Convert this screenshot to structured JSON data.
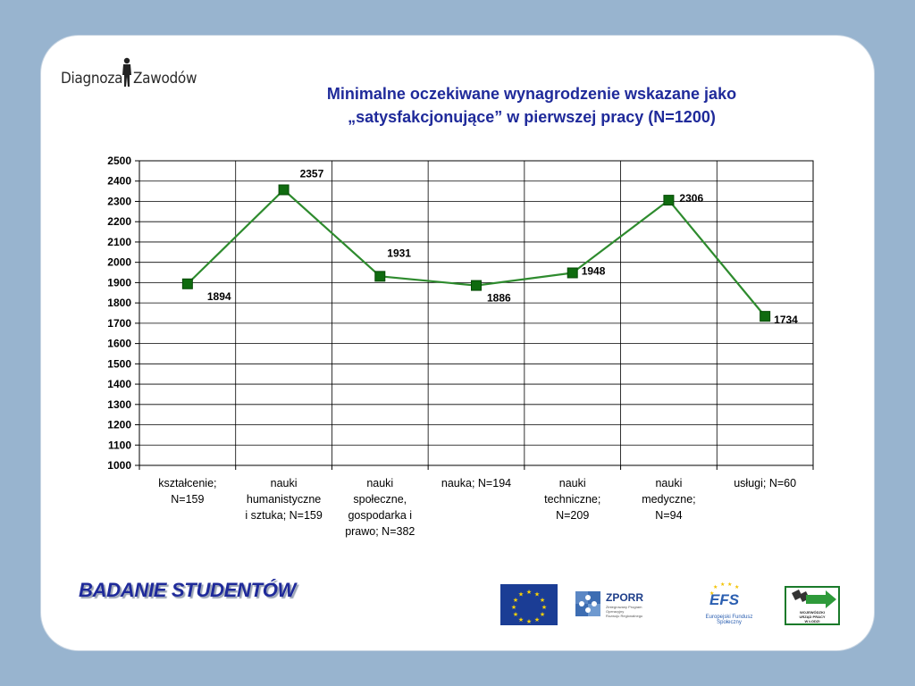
{
  "header": {
    "brand_left": "Diagnoza",
    "brand_right": "Zawodów",
    "title_line1": "Minimalne oczekiwane wynagrodzenie wskazane jako",
    "title_line2": "„satysfakcjonujące” w pierwszej pracy (N=1200)"
  },
  "footer": {
    "survey_label": "BADANIE STUDENTÓW",
    "zporr_label": "ZPORR",
    "zporr_sub": [
      "Zintegrowany Program",
      "Operacyjny",
      "Rozwoju Regionalnego"
    ],
    "efs_label": "EFS",
    "efs_sub": "Europejski Fundusz Społeczny",
    "wup_label": [
      "WOJEWÓDZKI",
      "URZĄD PRACY",
      "W ŁODZI"
    ]
  },
  "colors": {
    "background": "#98b4cf",
    "title": "#1f2a9a",
    "line": "#2e8b2e",
    "marker": "#0f6b0f"
  },
  "chart_data": {
    "type": "line",
    "title": "Minimalne oczekiwane wynagrodzenie wskazane jako „satysfakcjonujące” w pierwszej pracy (N=1200)",
    "xlabel": "",
    "ylabel": "",
    "ylim": [
      1000,
      2500
    ],
    "ytick_step": 100,
    "grid": true,
    "legend": "none",
    "categories": [
      [
        "kształcenie;",
        "N=159"
      ],
      [
        "nauki",
        "humanistyczne",
        "i sztuka; N=159"
      ],
      [
        "nauki",
        "społeczne,",
        "gospodarka i",
        "prawo; N=382"
      ],
      [
        "nauka; N=194"
      ],
      [
        "nauki",
        "techniczne;",
        "N=209"
      ],
      [
        "nauki",
        "medyczne;",
        "N=94"
      ],
      [
        "usługi; N=60"
      ]
    ],
    "series": [
      {
        "values": [
          1894,
          2357,
          1931,
          1886,
          1948,
          2306,
          1734
        ]
      }
    ],
    "data_labels": [
      "1894",
      "2357",
      "1931",
      "1886",
      "1948",
      "2306",
      "1734"
    ]
  }
}
